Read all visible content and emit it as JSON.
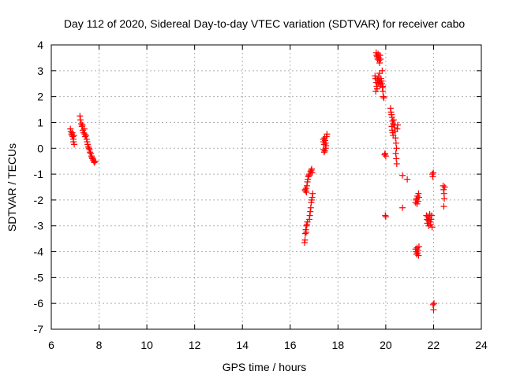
{
  "chart_data": {
    "type": "scatter",
    "title": "Day 112 of 2020, Sidereal Day-to-day VTEC variation (SDTVAR) for receiver cabo",
    "xlabel": "GPS time / hours",
    "ylabel": "SDTVAR / TECUs",
    "xlim": [
      6,
      24
    ],
    "ylim": [
      -7,
      4
    ],
    "xticks": [
      6,
      8,
      10,
      12,
      14,
      16,
      18,
      20,
      22,
      24
    ],
    "yticks": [
      -7,
      -6,
      -5,
      -4,
      -3,
      -2,
      -1,
      0,
      1,
      2,
      3,
      4
    ],
    "grid": true,
    "marker": "+",
    "colors": {
      "series": "#ff0000",
      "grid": "#b0b0b0",
      "axis": "#000000"
    },
    "series": [
      {
        "name": "SDTVAR",
        "points": [
          [
            6.8,
            0.75
          ],
          [
            6.82,
            0.65
          ],
          [
            6.85,
            0.55
          ],
          [
            6.87,
            0.5
          ],
          [
            6.88,
            0.6
          ],
          [
            6.9,
            0.45
          ],
          [
            6.92,
            0.35
          ],
          [
            6.93,
            0.25
          ],
          [
            6.95,
            0.5
          ],
          [
            6.96,
            0.15
          ],
          [
            7.2,
            1.25
          ],
          [
            7.22,
            1.1
          ],
          [
            7.25,
            0.95
          ],
          [
            7.28,
            0.85
          ],
          [
            7.3,
            0.9
          ],
          [
            7.32,
            0.7
          ],
          [
            7.35,
            0.6
          ],
          [
            7.38,
            0.75
          ],
          [
            7.4,
            0.55
          ],
          [
            7.42,
            0.45
          ],
          [
            7.45,
            0.5
          ],
          [
            7.48,
            0.35
          ],
          [
            7.5,
            0.25
          ],
          [
            7.52,
            0.15
          ],
          [
            7.55,
            0.05
          ],
          [
            7.58,
            0.0
          ],
          [
            7.6,
            -0.05
          ],
          [
            7.62,
            -0.15
          ],
          [
            7.65,
            -0.2
          ],
          [
            7.68,
            -0.3
          ],
          [
            7.7,
            -0.35
          ],
          [
            7.72,
            -0.4
          ],
          [
            7.75,
            -0.45
          ],
          [
            7.78,
            -0.5
          ],
          [
            7.8,
            -0.55
          ],
          [
            7.85,
            -0.5
          ],
          [
            16.6,
            -3.65
          ],
          [
            16.62,
            -3.55
          ],
          [
            16.63,
            -3.3
          ],
          [
            16.65,
            -3.15
          ],
          [
            16.67,
            -3.25
          ],
          [
            16.68,
            -3.0
          ],
          [
            16.7,
            -2.95
          ],
          [
            16.72,
            -2.85
          ],
          [
            16.62,
            -1.6
          ],
          [
            16.64,
            -1.65
          ],
          [
            16.66,
            -1.55
          ],
          [
            16.68,
            -1.7
          ],
          [
            16.7,
            -1.45
          ],
          [
            16.72,
            -1.3
          ],
          [
            16.74,
            -1.2
          ],
          [
            16.76,
            -1.1
          ],
          [
            16.78,
            -1.05
          ],
          [
            16.8,
            -1.0
          ],
          [
            16.8,
            -2.75
          ],
          [
            16.82,
            -2.6
          ],
          [
            16.84,
            -2.45
          ],
          [
            16.86,
            -2.3
          ],
          [
            16.88,
            -2.1
          ],
          [
            16.9,
            -2.0
          ],
          [
            16.92,
            -1.9
          ],
          [
            16.94,
            -1.75
          ],
          [
            16.85,
            -0.9
          ],
          [
            16.88,
            -0.85
          ],
          [
            16.9,
            -0.8
          ],
          [
            16.92,
            -0.95
          ],
          [
            17.38,
            0.35
          ],
          [
            17.4,
            0.25
          ],
          [
            17.42,
            0.15
          ],
          [
            17.44,
            0.4
          ],
          [
            17.46,
            0.3
          ],
          [
            17.48,
            0.2
          ],
          [
            17.5,
            0.1
          ],
          [
            17.52,
            0.45
          ],
          [
            17.54,
            0.55
          ],
          [
            17.4,
            -0.05
          ],
          [
            17.42,
            -0.15
          ],
          [
            17.45,
            -0.1
          ],
          [
            17.48,
            0.0
          ],
          [
            19.6,
            3.7
          ],
          [
            19.62,
            3.6
          ],
          [
            19.64,
            3.55
          ],
          [
            19.66,
            3.45
          ],
          [
            19.68,
            3.65
          ],
          [
            19.7,
            3.5
          ],
          [
            19.72,
            3.4
          ],
          [
            19.74,
            3.3
          ],
          [
            19.76,
            3.6
          ],
          [
            19.78,
            3.45
          ],
          [
            19.55,
            2.8
          ],
          [
            19.57,
            2.7
          ],
          [
            19.6,
            2.55
          ],
          [
            19.62,
            2.4
          ],
          [
            19.64,
            2.3
          ],
          [
            19.58,
            2.2
          ],
          [
            19.66,
            2.65
          ],
          [
            19.68,
            2.5
          ],
          [
            19.7,
            2.75
          ],
          [
            19.72,
            2.6
          ],
          [
            19.74,
            2.9
          ],
          [
            19.76,
            2.55
          ],
          [
            19.78,
            2.45
          ],
          [
            19.8,
            2.7
          ],
          [
            19.82,
            2.6
          ],
          [
            19.84,
            2.5
          ],
          [
            19.86,
            2.35
          ],
          [
            19.88,
            2.2
          ],
          [
            19.9,
            2.0
          ],
          [
            19.92,
            1.95
          ],
          [
            19.85,
            3.0
          ],
          [
            19.87,
            2.4
          ],
          [
            19.95,
            -0.25
          ],
          [
            19.97,
            -0.2
          ],
          [
            20.0,
            -0.3
          ],
          [
            19.98,
            -2.6
          ],
          [
            20.0,
            -2.65
          ],
          [
            20.2,
            1.55
          ],
          [
            20.22,
            1.4
          ],
          [
            20.24,
            1.3
          ],
          [
            20.26,
            1.2
          ],
          [
            20.28,
            1.05
          ],
          [
            20.3,
            0.95
          ],
          [
            20.25,
            0.85
          ],
          [
            20.27,
            0.7
          ],
          [
            20.29,
            0.6
          ],
          [
            20.31,
            0.5
          ],
          [
            20.33,
            1.1
          ],
          [
            20.35,
            0.9
          ],
          [
            20.37,
            0.8
          ],
          [
            20.39,
            0.65
          ],
          [
            20.41,
            0.4
          ],
          [
            20.43,
            0.2
          ],
          [
            20.45,
            0.0
          ],
          [
            20.42,
            -0.2
          ],
          [
            20.44,
            -0.4
          ],
          [
            20.46,
            -0.6
          ],
          [
            20.48,
            0.75
          ],
          [
            20.5,
            0.9
          ],
          [
            20.7,
            -1.05
          ],
          [
            20.9,
            -1.2
          ],
          [
            20.7,
            -2.3
          ],
          [
            21.25,
            -3.9
          ],
          [
            21.27,
            -4.0
          ],
          [
            21.29,
            -4.1
          ],
          [
            21.31,
            -3.85
          ],
          [
            21.33,
            -4.05
          ],
          [
            21.35,
            -3.95
          ],
          [
            21.37,
            -4.15
          ],
          [
            21.39,
            -3.8
          ],
          [
            21.25,
            -2.1
          ],
          [
            21.27,
            -2.0
          ],
          [
            21.29,
            -1.95
          ],
          [
            21.31,
            -2.15
          ],
          [
            21.33,
            -1.85
          ],
          [
            21.35,
            -2.05
          ],
          [
            21.37,
            -1.75
          ],
          [
            21.39,
            -1.9
          ],
          [
            21.7,
            -2.6
          ],
          [
            21.72,
            -2.75
          ],
          [
            21.74,
            -2.9
          ],
          [
            21.76,
            -2.65
          ],
          [
            21.78,
            -2.8
          ],
          [
            21.8,
            -3.0
          ],
          [
            21.82,
            -2.7
          ],
          [
            21.84,
            -2.55
          ],
          [
            21.86,
            -2.85
          ],
          [
            21.88,
            -2.95
          ],
          [
            21.9,
            -2.75
          ],
          [
            21.92,
            -2.6
          ],
          [
            21.94,
            -3.05
          ],
          [
            21.95,
            -1.0
          ],
          [
            21.97,
            -1.1
          ],
          [
            21.99,
            -0.95
          ],
          [
            21.98,
            -6.05
          ],
          [
            22.0,
            -6.25
          ],
          [
            22.02,
            -6.0
          ],
          [
            22.4,
            -1.45
          ],
          [
            22.42,
            -1.6
          ],
          [
            22.44,
            -1.75
          ],
          [
            22.45,
            -1.95
          ],
          [
            22.43,
            -2.25
          ],
          [
            22.47,
            -1.5
          ]
        ]
      }
    ]
  }
}
